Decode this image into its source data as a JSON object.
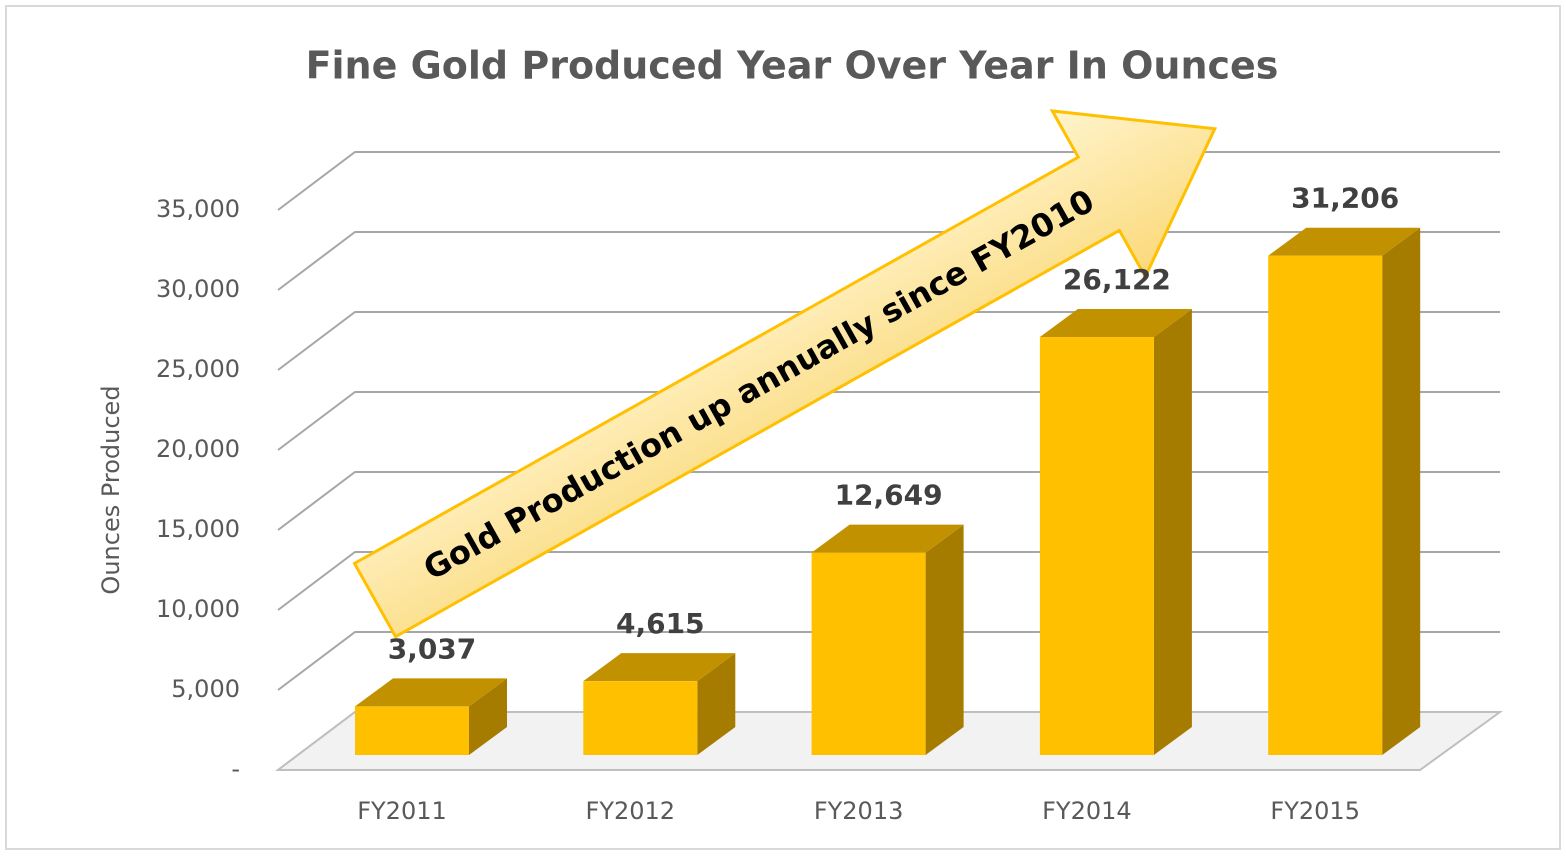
{
  "chart_data": {
    "type": "bar3d",
    "title": "Fine Gold Produced Year Over Year In Ounces",
    "y_label": "Ounces Produced",
    "annotation": "Gold Production up annually since FY2010",
    "categories": [
      "FY2011",
      "FY2012",
      "FY2013",
      "FY2014",
      "FY2015"
    ],
    "values": [
      3037,
      4615,
      12649,
      26122,
      31206
    ],
    "value_labels": [
      "3,037",
      "4,615",
      "12,649",
      "26,122",
      "31,206"
    ],
    "color": "#ffc000",
    "ylim": [
      0,
      35000
    ],
    "yticks": [
      {
        "value": 0,
        "label": "-"
      },
      {
        "value": 5000,
        "label": "5,000"
      },
      {
        "value": 10000,
        "label": "10,000"
      },
      {
        "value": 15000,
        "label": "15,000"
      },
      {
        "value": 20000,
        "label": "20,000"
      },
      {
        "value": 25000,
        "label": "25,000"
      },
      {
        "value": 30000,
        "label": "30,000"
      },
      {
        "value": 35000,
        "label": "35,000"
      }
    ],
    "grid": true
  }
}
